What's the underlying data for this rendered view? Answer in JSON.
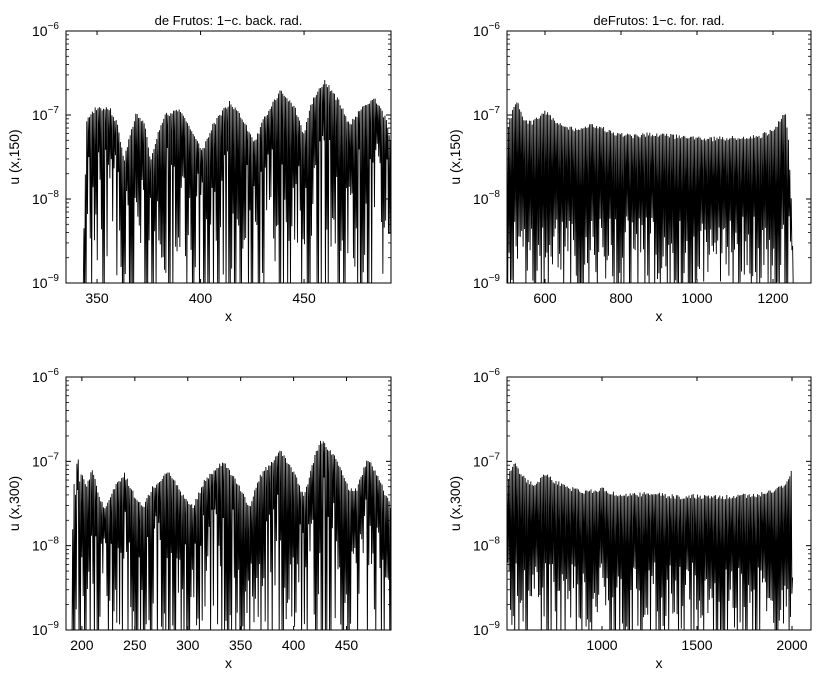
{
  "chart_data": [
    {
      "type": "line",
      "title": "de Frutos: 1−c. back. rad.",
      "xlabel": "x",
      "ylabel": "u (x,150)",
      "xlim": [
        335,
        492
      ],
      "ylim": [
        1e-09,
        1e-06
      ],
      "yscale": "log",
      "xticks": [
        350,
        400,
        450
      ],
      "xtick_labels": [
        "350",
        "400",
        "450"
      ],
      "yticks": [
        1e-09,
        1e-08,
        1e-07,
        1e-06
      ],
      "ytick_labels": [
        {
          "base": "10",
          "exp": "−9"
        },
        {
          "base": "10",
          "exp": "−8"
        },
        {
          "base": "10",
          "exp": "−7"
        },
        {
          "base": "10",
          "exp": "−6"
        }
      ],
      "grid": false,
      "color": "#000000",
      "pattern": "oscillating-lobes",
      "envelope_x": [
        343,
        345,
        347,
        349,
        351,
        353,
        356,
        360,
        363,
        365,
        369,
        373,
        376,
        379,
        383,
        390,
        396,
        401,
        406,
        414,
        421,
        426,
        431,
        439,
        446,
        450,
        453,
        460,
        467,
        472,
        477,
        484,
        490,
        492
      ],
      "envelope_y": [
        1e-09,
        9.3e-08,
        1.05e-07,
        1.25e-07,
        1.3e-07,
        1.2e-07,
        1.28e-07,
        8.2e-08,
        3e-08,
        5e-08,
        1.1e-07,
        8e-08,
        3e-08,
        6e-08,
        1.05e-07,
        1.2e-07,
        7e-08,
        4e-08,
        8e-08,
        1.5e-07,
        9e-08,
        5e-08,
        1e-07,
        2.1e-07,
        1.2e-07,
        6e-08,
        1.4e-07,
        2.7e-07,
        1.5e-07,
        8e-08,
        1.2e-07,
        1.65e-07,
        9e-08,
        5e-08
      ]
    },
    {
      "type": "line",
      "title": "deFrutos: 1−c. for. rad.",
      "xlabel": "x",
      "ylabel": "u (x,150)",
      "xlim": [
        500,
        1300
      ],
      "ylim": [
        1e-09,
        1e-06
      ],
      "yscale": "log",
      "xticks": [
        600,
        800,
        1000,
        1200
      ],
      "xtick_labels": [
        "600",
        "800",
        "1000",
        "1200"
      ],
      "yticks": [
        1e-09,
        1e-08,
        1e-07,
        1e-06
      ],
      "ytick_labels": [
        {
          "base": "10",
          "exp": "−9"
        },
        {
          "base": "10",
          "exp": "−8"
        },
        {
          "base": "10",
          "exp": "−7"
        },
        {
          "base": "10",
          "exp": "−6"
        }
      ],
      "grid": false,
      "color": "#000000",
      "pattern": "dense-band",
      "envelope_x": [
        500,
        515,
        528,
        545,
        565,
        600,
        635,
        680,
        730,
        780,
        830,
        880,
        930,
        980,
        1030,
        1080,
        1130,
        1170,
        1200,
        1215,
        1225,
        1232,
        1240,
        1248,
        1255
      ],
      "envelope_y": [
        7e-08,
        1.2e-07,
        1.5e-07,
        9e-08,
        8.5e-08,
        1.15e-07,
        8.5e-08,
        7e-08,
        8e-08,
        6.5e-08,
        6e-08,
        6.3e-08,
        6e-08,
        5.6e-08,
        5.5e-08,
        5.6e-08,
        5.7e-08,
        6e-08,
        7e-08,
        8.5e-08,
        1.05e-07,
        1.15e-07,
        6e-08,
        1e-08,
        1e-09
      ]
    },
    {
      "type": "line",
      "title": "",
      "xlabel": "x",
      "ylabel": "u (x,300)",
      "xlim": [
        185,
        492
      ],
      "ylim": [
        1e-09,
        1e-06
      ],
      "yscale": "log",
      "xticks": [
        200,
        250,
        300,
        350,
        400,
        450
      ],
      "xtick_labels": [
        "200",
        "250",
        "300",
        "350",
        "400",
        "450"
      ],
      "yticks": [
        1e-09,
        1e-08,
        1e-07,
        1e-06
      ],
      "ytick_labels": [
        {
          "base": "10",
          "exp": "−9"
        },
        {
          "base": "10",
          "exp": "−8"
        },
        {
          "base": "10",
          "exp": "−7"
        },
        {
          "base": "10",
          "exp": "−6"
        }
      ],
      "grid": false,
      "color": "#000000",
      "pattern": "oscillating-lobes",
      "envelope_x": [
        190,
        192,
        194,
        196,
        198,
        200,
        204,
        210,
        216,
        222,
        230,
        240,
        250,
        258,
        266,
        282,
        296,
        305,
        315,
        334,
        350,
        358,
        368,
        388,
        402,
        410,
        420,
        426,
        440,
        452,
        460,
        470,
        482,
        492
      ],
      "envelope_y": [
        1e-09,
        7e-08,
        4e-08,
        1.6e-07,
        6e-08,
        8e-08,
        5e-08,
        8.5e-08,
        4e-08,
        3e-08,
        5e-08,
        7.5e-08,
        4e-08,
        3e-08,
        5e-08,
        8e-08,
        4e-08,
        3e-08,
        6e-08,
        1.05e-07,
        5e-08,
        3e-08,
        7e-08,
        1.4e-07,
        7e-08,
        4e-08,
        1.2e-07,
        1.85e-07,
        1.2e-07,
        5e-08,
        5e-08,
        1.15e-07,
        6e-08,
        3e-08
      ]
    },
    {
      "type": "line",
      "title": "",
      "xlabel": "x",
      "ylabel": "u (x,300)",
      "xlim": [
        500,
        2100
      ],
      "ylim": [
        1e-09,
        1e-06
      ],
      "yscale": "log",
      "xticks": [
        1000,
        1500,
        2000
      ],
      "xtick_labels": [
        "1000",
        "1500",
        "2000"
      ],
      "yticks": [
        1e-09,
        1e-08,
        1e-07,
        1e-06
      ],
      "ytick_labels": [
        {
          "base": "10",
          "exp": "−9"
        },
        {
          "base": "10",
          "exp": "−8"
        },
        {
          "base": "10",
          "exp": "−7"
        },
        {
          "base": "10",
          "exp": "−6"
        }
      ],
      "grid": false,
      "color": "#000000",
      "pattern": "dense-band",
      "envelope_x": [
        500,
        515,
        540,
        580,
        640,
        700,
        760,
        840,
        920,
        1000,
        1080,
        1160,
        1240,
        1320,
        1400,
        1480,
        1560,
        1640,
        1720,
        1800,
        1860,
        1920,
        1960,
        1985,
        1995,
        2000,
        2005
      ],
      "envelope_y": [
        6e-08,
        8e-08,
        1.05e-07,
        7e-08,
        5.5e-08,
        7.3e-08,
        6e-08,
        5e-08,
        4.6e-08,
        5e-08,
        4.2e-08,
        4.2e-08,
        4.4e-08,
        4.2e-08,
        4e-08,
        4.1e-08,
        4e-08,
        4e-08,
        4.1e-08,
        4.2e-08,
        4.5e-08,
        5e-08,
        5.5e-08,
        7e-08,
        8.5e-08,
        5e-08,
        1e-09
      ]
    }
  ]
}
